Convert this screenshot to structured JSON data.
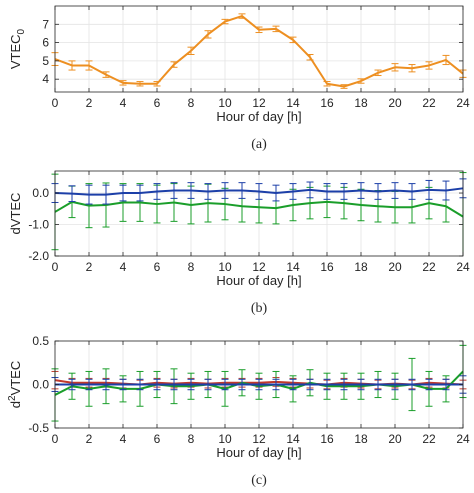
{
  "chart_data": [
    {
      "type": "line",
      "panel_label": "(a)",
      "xlabel": "Hour of day [h]",
      "ylabel_main": "VTEC",
      "ylabel_sub": "0",
      "xlim": [
        0,
        24
      ],
      "ylim": [
        3.3,
        8
      ],
      "xticks": [
        0,
        2,
        4,
        6,
        8,
        10,
        12,
        14,
        16,
        18,
        20,
        22,
        24
      ],
      "yticks": [
        4,
        5,
        6,
        7
      ],
      "grid": true,
      "x": [
        0,
        1,
        2,
        3,
        4,
        5,
        6,
        7,
        8,
        9,
        10,
        11,
        12,
        13,
        14,
        15,
        16,
        17,
        18,
        19,
        20,
        21,
        22,
        23,
        24
      ],
      "series": [
        {
          "color": "#ED8F21",
          "values": [
            5.1,
            4.75,
            4.75,
            4.25,
            3.8,
            3.75,
            3.75,
            4.8,
            5.55,
            6.45,
            7.15,
            7.45,
            6.7,
            6.75,
            6.15,
            5.2,
            3.75,
            3.6,
            3.9,
            4.35,
            4.65,
            4.6,
            4.75,
            5.05,
            4.3
          ],
          "errors": [
            0.35,
            0.25,
            0.25,
            0.15,
            0.12,
            0.12,
            0.12,
            0.15,
            0.2,
            0.2,
            0.12,
            0.12,
            0.15,
            0.15,
            0.15,
            0.15,
            0.12,
            0.1,
            0.12,
            0.15,
            0.2,
            0.2,
            0.2,
            0.25,
            0.2
          ]
        }
      ]
    },
    {
      "type": "line",
      "panel_label": "(b)",
      "xlabel": "Hour of day [h]",
      "ylabel_main": "dVTEC",
      "xlim": [
        0,
        24
      ],
      "ylim": [
        -2,
        0.7
      ],
      "xticks": [
        0,
        2,
        4,
        6,
        8,
        10,
        12,
        14,
        16,
        18,
        20,
        22,
        24
      ],
      "yticks": [
        -2.0,
        -1.0,
        0.0
      ],
      "ytick_labels": [
        "-2.0",
        "-1.0",
        "0.0"
      ],
      "grid": true,
      "x": [
        0,
        1,
        2,
        3,
        4,
        5,
        6,
        7,
        8,
        9,
        10,
        11,
        12,
        13,
        14,
        15,
        16,
        17,
        18,
        19,
        20,
        21,
        22,
        23,
        24
      ],
      "series": [
        {
          "color": "#1A9E2A",
          "values": [
            -0.6,
            -0.28,
            -0.4,
            -0.38,
            -0.3,
            -0.3,
            -0.35,
            -0.3,
            -0.38,
            -0.32,
            -0.35,
            -0.42,
            -0.45,
            -0.48,
            -0.38,
            -0.32,
            -0.28,
            -0.32,
            -0.38,
            -0.42,
            -0.45,
            -0.45,
            -0.32,
            -0.42,
            -0.75
          ],
          "errors": [
            1.2,
            0.5,
            0.7,
            0.7,
            0.6,
            0.6,
            0.6,
            0.6,
            0.6,
            0.6,
            0.5,
            0.5,
            0.5,
            0.5,
            0.5,
            0.5,
            0.5,
            0.5,
            0.5,
            0.5,
            0.5,
            0.5,
            0.5,
            0.5,
            1.4
          ]
        },
        {
          "color": "#1C3FA8",
          "values": [
            0.0,
            -0.02,
            -0.05,
            -0.05,
            0.0,
            0.0,
            0.05,
            0.08,
            0.08,
            0.05,
            0.08,
            0.08,
            0.05,
            0.0,
            0.05,
            0.1,
            0.05,
            0.05,
            0.08,
            0.05,
            0.08,
            0.05,
            0.1,
            0.08,
            0.15
          ],
          "errors": [
            0.3,
            0.25,
            0.3,
            0.3,
            0.25,
            0.25,
            0.25,
            0.25,
            0.25,
            0.25,
            0.25,
            0.25,
            0.25,
            0.25,
            0.25,
            0.25,
            0.25,
            0.25,
            0.25,
            0.25,
            0.25,
            0.25,
            0.3,
            0.3,
            0.3
          ]
        }
      ]
    },
    {
      "type": "line",
      "panel_label": "(c)",
      "xlabel": "Hour of day [h]",
      "ylabel_main": "d",
      "ylabel_sup": "2",
      "ylabel_rest": "VTEC",
      "xlim": [
        0,
        24
      ],
      "ylim": [
        -0.5,
        0.5
      ],
      "xticks": [
        0,
        2,
        4,
        6,
        8,
        10,
        12,
        14,
        16,
        18,
        20,
        22,
        24
      ],
      "yticks": [
        -0.5,
        0.0,
        0.5
      ],
      "ytick_labels": [
        "-0.5",
        "0.0",
        "0.5"
      ],
      "grid": true,
      "x": [
        0,
        1,
        2,
        3,
        4,
        5,
        6,
        7,
        8,
        9,
        10,
        11,
        12,
        13,
        14,
        15,
        16,
        17,
        18,
        19,
        20,
        21,
        22,
        23,
        24
      ],
      "series": [
        {
          "color": "#C0392B",
          "values": [
            0.05,
            0.02,
            0.02,
            0.02,
            0.01,
            0.0,
            0.02,
            0.01,
            0.02,
            0.01,
            0.02,
            0.02,
            0.02,
            0.03,
            0.02,
            0.01,
            0.0,
            0.02,
            0.01,
            0.0,
            0.01,
            0.0,
            0.02,
            0.01,
            0.0
          ],
          "errors": [
            0.1,
            0.05,
            0.05,
            0.05,
            0.05,
            0.05,
            0.05,
            0.05,
            0.05,
            0.05,
            0.05,
            0.05,
            0.05,
            0.05,
            0.05,
            0.05,
            0.05,
            0.05,
            0.05,
            0.05,
            0.05,
            0.05,
            0.05,
            0.05,
            0.05
          ]
        },
        {
          "color": "#1A9E2A",
          "values": [
            -0.12,
            -0.02,
            -0.05,
            -0.02,
            -0.05,
            -0.05,
            0.0,
            -0.02,
            -0.02,
            0.0,
            -0.05,
            0.02,
            -0.02,
            0.0,
            -0.05,
            0.02,
            -0.02,
            -0.02,
            -0.02,
            0.0,
            -0.02,
            0.0,
            -0.05,
            -0.05,
            0.15
          ],
          "errors": [
            0.3,
            0.15,
            0.2,
            0.2,
            0.15,
            0.2,
            0.15,
            0.2,
            0.15,
            0.15,
            0.2,
            0.15,
            0.15,
            0.15,
            0.15,
            0.15,
            0.15,
            0.15,
            0.15,
            0.15,
            0.15,
            0.3,
            0.2,
            0.15,
            0.3
          ]
        },
        {
          "color": "#1C3FA8",
          "values": [
            0.0,
            0.0,
            0.0,
            0.0,
            0.0,
            0.0,
            0.0,
            0.0,
            0.0,
            0.0,
            0.0,
            0.0,
            0.0,
            0.0,
            0.0,
            0.0,
            0.0,
            0.0,
            0.0,
            0.0,
            0.0,
            0.0,
            0.0,
            0.0,
            0.0
          ],
          "errors": [
            0.08,
            0.06,
            0.06,
            0.06,
            0.06,
            0.06,
            0.06,
            0.06,
            0.06,
            0.06,
            0.06,
            0.06,
            0.06,
            0.06,
            0.06,
            0.06,
            0.06,
            0.06,
            0.06,
            0.06,
            0.06,
            0.06,
            0.06,
            0.06,
            0.1
          ]
        }
      ]
    }
  ]
}
